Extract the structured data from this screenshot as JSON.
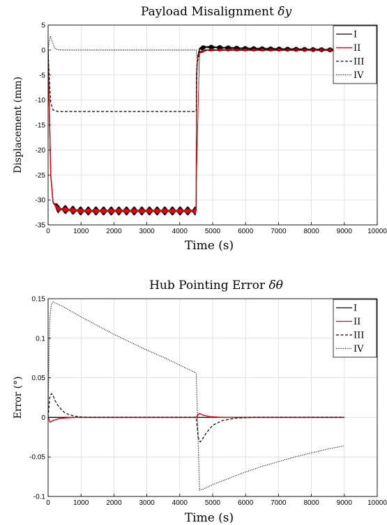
{
  "chart_data": [
    {
      "type": "line",
      "title": "Payload Misalignment",
      "title_symbol": "δy",
      "xlabel": "Time (s)",
      "ylabel": "Displacement (mm)",
      "xlim": [
        0,
        10000
      ],
      "ylim": [
        -35,
        5
      ],
      "xticks": [
        0,
        1000,
        2000,
        3000,
        4000,
        5000,
        6000,
        7000,
        8000,
        9000,
        10000
      ],
      "yticks": [
        -35,
        -30,
        -25,
        -20,
        -15,
        -10,
        -5,
        0,
        5
      ],
      "grid": true,
      "legend_position": "top-right",
      "series": [
        {
          "name": "I",
          "color": "#000000",
          "style": "solid",
          "x": [
            0,
            30,
            80,
            150,
            300,
            1000,
            2000,
            3000,
            4000,
            4500,
            4510,
            4540,
            4600,
            4800,
            5200,
            6000,
            7000,
            8000,
            9000
          ],
          "y": [
            0,
            -10,
            -25,
            -30.5,
            -31.8,
            -32.2,
            -32.2,
            -32.2,
            -32.2,
            -32.2,
            -5,
            -1.5,
            0.3,
            0.6,
            0.5,
            0.3,
            0.2,
            0.1,
            0
          ],
          "oscillation_amplitude": 0.9
        },
        {
          "name": "II",
          "color": "#e8000b",
          "style": "solid",
          "x": [
            0,
            30,
            80,
            150,
            300,
            1000,
            2000,
            3000,
            4000,
            4500,
            4510,
            4540,
            4600,
            4800,
            5200,
            6000,
            7000,
            8000,
            9000
          ],
          "y": [
            0,
            -10,
            -25,
            -30.5,
            -31.8,
            -32.2,
            -32.2,
            -32.2,
            -32.2,
            -32.2,
            -5,
            -1.5,
            -0.5,
            0,
            0,
            0,
            0,
            0,
            0
          ],
          "oscillation_amplitude": 0.5
        },
        {
          "name": "III",
          "color": "#000000",
          "style": "dashed",
          "x": [
            0,
            30,
            80,
            150,
            300,
            1000,
            4500,
            4520,
            4600,
            4800,
            5200,
            6000,
            7000,
            8000,
            9000
          ],
          "y": [
            0,
            -5,
            -10.5,
            -12,
            -12.3,
            -12.3,
            -12.3,
            -3,
            -0.6,
            -0.1,
            0,
            0,
            0,
            0,
            0
          ]
        },
        {
          "name": "IV",
          "color": "#000000",
          "style": "dotted",
          "x": [
            0,
            30,
            70,
            120,
            200,
            300,
            500,
            1000,
            4500,
            4520,
            4600,
            4800,
            6000,
            9000
          ],
          "y": [
            0,
            1.5,
            2.8,
            1.8,
            0.4,
            0.05,
            0,
            0,
            0,
            -1.5,
            -0.3,
            0,
            0,
            0
          ]
        }
      ]
    },
    {
      "type": "line",
      "title": "Hub Pointing Error",
      "title_symbol": "δθ",
      "xlabel": "Time (s)",
      "ylabel": "Error (°)",
      "xlim": [
        0,
        10000
      ],
      "ylim": [
        -0.1,
        0.15
      ],
      "xticks": [
        0,
        1000,
        2000,
        3000,
        4000,
        5000,
        6000,
        7000,
        8000,
        9000,
        10000
      ],
      "yticks": [
        -0.1,
        -0.05,
        0,
        0.05,
        0.1,
        0.15
      ],
      "grid": true,
      "legend_position": "top-right",
      "series": [
        {
          "name": "I",
          "color": "#000000",
          "style": "solid",
          "x": [
            0,
            9000
          ],
          "y": [
            0,
            0
          ]
        },
        {
          "name": "II",
          "color": "#e8000b",
          "style": "solid",
          "x": [
            0,
            60,
            150,
            300,
            500,
            800,
            1200,
            4500,
            4550,
            4600,
            4700,
            4900,
            5300,
            6000,
            9000
          ],
          "y": [
            0,
            -0.006,
            -0.004,
            -0.002,
            -0.0008,
            0,
            0,
            0,
            0.003,
            0.005,
            0.003,
            0.001,
            0,
            0,
            0
          ]
        },
        {
          "name": "III",
          "color": "#000000",
          "style": "dashed",
          "x": [
            0,
            50,
            100,
            150,
            200,
            300,
            400,
            500,
            600,
            800,
            1000,
            1300,
            4500,
            4560,
            4620,
            4700,
            4800,
            5000,
            5300,
            5700,
            6200,
            9000
          ],
          "y": [
            0,
            0.025,
            0.03,
            0.028,
            0.022,
            0.015,
            0.01,
            0.006,
            0.004,
            0.0015,
            0.0005,
            0,
            0,
            -0.025,
            -0.031,
            -0.027,
            -0.02,
            -0.01,
            -0.004,
            -0.001,
            0,
            0
          ]
        },
        {
          "name": "IV",
          "color": "#000000",
          "style": "dotted",
          "x": [
            0,
            30,
            60,
            100,
            150,
            200,
            500,
            1000,
            1500,
            2000,
            2500,
            3000,
            3500,
            4000,
            4500,
            4540,
            4600,
            4700,
            5000,
            5500,
            6000,
            6500,
            7000,
            7500,
            8000,
            8500,
            9000
          ],
          "y": [
            0,
            0.09,
            0.13,
            0.143,
            0.146,
            0.145,
            0.139,
            0.127,
            0.116,
            0.105,
            0.095,
            0.085,
            0.076,
            0.066,
            0.056,
            0,
            -0.092,
            -0.091,
            -0.085,
            -0.077,
            -0.069,
            -0.062,
            -0.056,
            -0.05,
            -0.045,
            -0.04,
            -0.036
          ]
        }
      ]
    }
  ]
}
